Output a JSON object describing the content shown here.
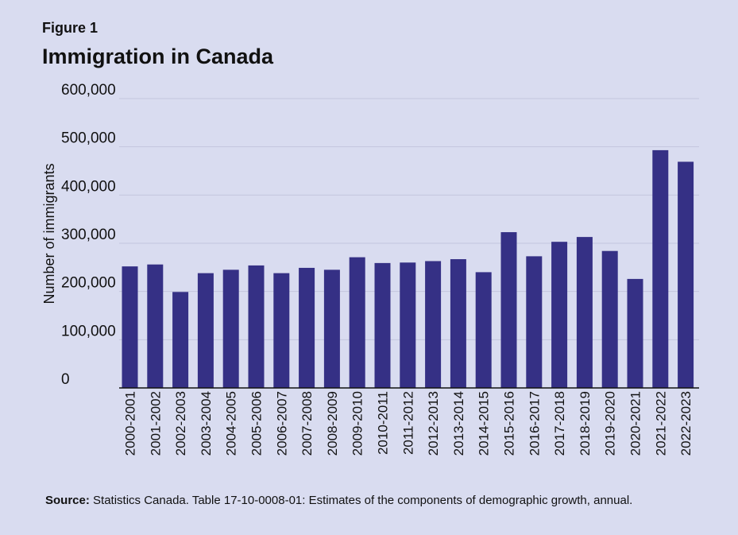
{
  "figure_label": "Figure 1",
  "title": "Immigration in Canada",
  "source": {
    "label": "Source:",
    "text": "Statistics Canada. Table 17-10-0008-01: Estimates of the components of demographic growth, annual."
  },
  "colors": {
    "bar": "#353085",
    "grid": "#c3c6de",
    "axis": "#111111",
    "background": "#d9dcf0"
  },
  "chart_data": {
    "type": "bar",
    "title": "Immigration in Canada",
    "xlabel": "",
    "ylabel": "Number of immigrants",
    "ylim": [
      0,
      600000
    ],
    "yticks": [
      0,
      100000,
      200000,
      300000,
      400000,
      500000,
      600000
    ],
    "ytick_labels": [
      "0",
      "100,000",
      "200,000",
      "300,000",
      "400,000",
      "500,000",
      "600,000"
    ],
    "grid": true,
    "legend": "none",
    "categories": [
      "2000-2001",
      "2001-2002",
      "2002-2003",
      "2003-2004",
      "2004-2005",
      "2005-2006",
      "2006-2007",
      "2007-2008",
      "2008-2009",
      "2009-2010",
      "2010-2011",
      "2011-2012",
      "2012-2013",
      "2013-2014",
      "2014-2015",
      "2015-2016",
      "2016-2017",
      "2017-2018",
      "2018-2019",
      "2019-2020",
      "2020-2021",
      "2021-2022",
      "2022-2023"
    ],
    "values": [
      252000,
      256000,
      199000,
      238000,
      245000,
      254000,
      238000,
      249000,
      245000,
      271000,
      259000,
      260000,
      263000,
      267000,
      240000,
      323000,
      273000,
      303000,
      313000,
      284000,
      226000,
      493000,
      469000
    ]
  }
}
